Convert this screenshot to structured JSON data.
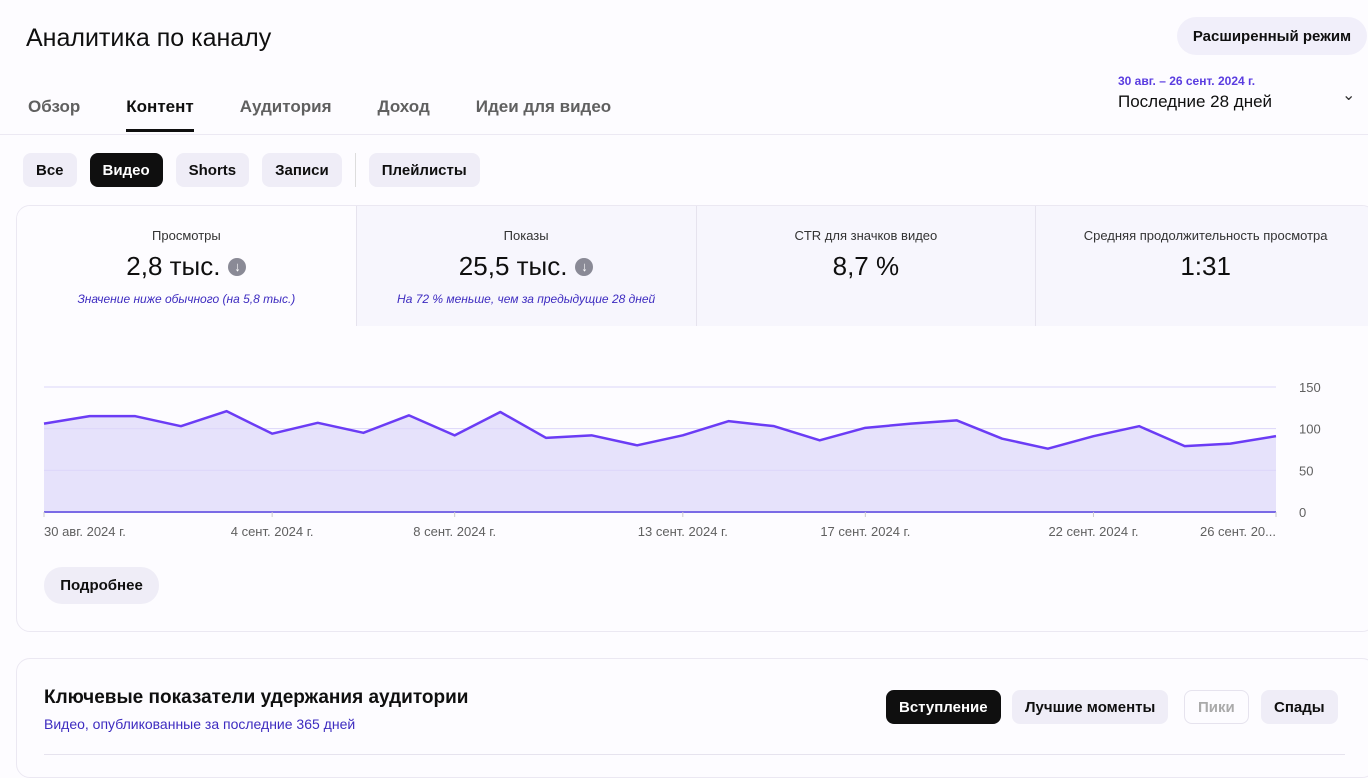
{
  "header": {
    "title": "Аналитика по каналу",
    "advanced_label": "Расширенный режим"
  },
  "tabs": [
    {
      "label": "Обзор"
    },
    {
      "label": "Контент",
      "active": true
    },
    {
      "label": "Аудитория"
    },
    {
      "label": "Доход"
    },
    {
      "label": "Идеи для видео"
    }
  ],
  "date_range": {
    "dates": "30 авг. – 26 сент. 2024 г.",
    "period": "Последние 28 дней"
  },
  "filters": [
    {
      "label": "Все"
    },
    {
      "label": "Видео",
      "active": true
    },
    {
      "label": "Shorts"
    },
    {
      "label": "Записи"
    },
    {
      "label": "Плейлисты"
    }
  ],
  "metrics": [
    {
      "label": "Просмотры",
      "value": "2,8 тыс.",
      "trend": "down",
      "note": "Значение ниже обычного (на 5,8 тыс.)"
    },
    {
      "label": "Показы",
      "value": "25,5 тыс.",
      "trend": "down",
      "note": "На 72 % меньше, чем за предыдущие 28 дней"
    },
    {
      "label": "CTR для значков видео",
      "value": "8,7 %"
    },
    {
      "label": "Средняя продолжительность просмотра",
      "value": "1:31"
    }
  ],
  "chart_data": {
    "type": "area",
    "ylim": [
      0,
      150
    ],
    "yticks": [
      "0",
      "50",
      "100",
      "150"
    ],
    "grid": true,
    "color": "#6b3cf5",
    "xtick_labels": [
      "30 авг. 2024 г.",
      "4 сент. 2024 г.",
      "8 сент. 2024 г.",
      "13 сент. 2024 г.",
      "17 сент. 2024 г.",
      "22 сент. 2024 г.",
      "26 сент. 20..."
    ],
    "xtick_index": [
      0,
      5,
      9,
      14,
      18,
      23,
      27
    ],
    "values": [
      106,
      115,
      115,
      103,
      121,
      94,
      107,
      95,
      116,
      92,
      120,
      89,
      92,
      80,
      92,
      109,
      103,
      86,
      101,
      106,
      110,
      88,
      76,
      91,
      103,
      79,
      82,
      91
    ]
  },
  "more_label": "Подробнее",
  "retention": {
    "title": "Ключевые показатели удержания аудитории",
    "subtitle": "Видео, опубликованные за последние 365 дней",
    "buttons": [
      {
        "label": "Вступление",
        "active": true
      },
      {
        "label": "Лучшие моменты"
      },
      {
        "label": "Пики",
        "disabled": true
      },
      {
        "label": "Спады"
      }
    ]
  }
}
